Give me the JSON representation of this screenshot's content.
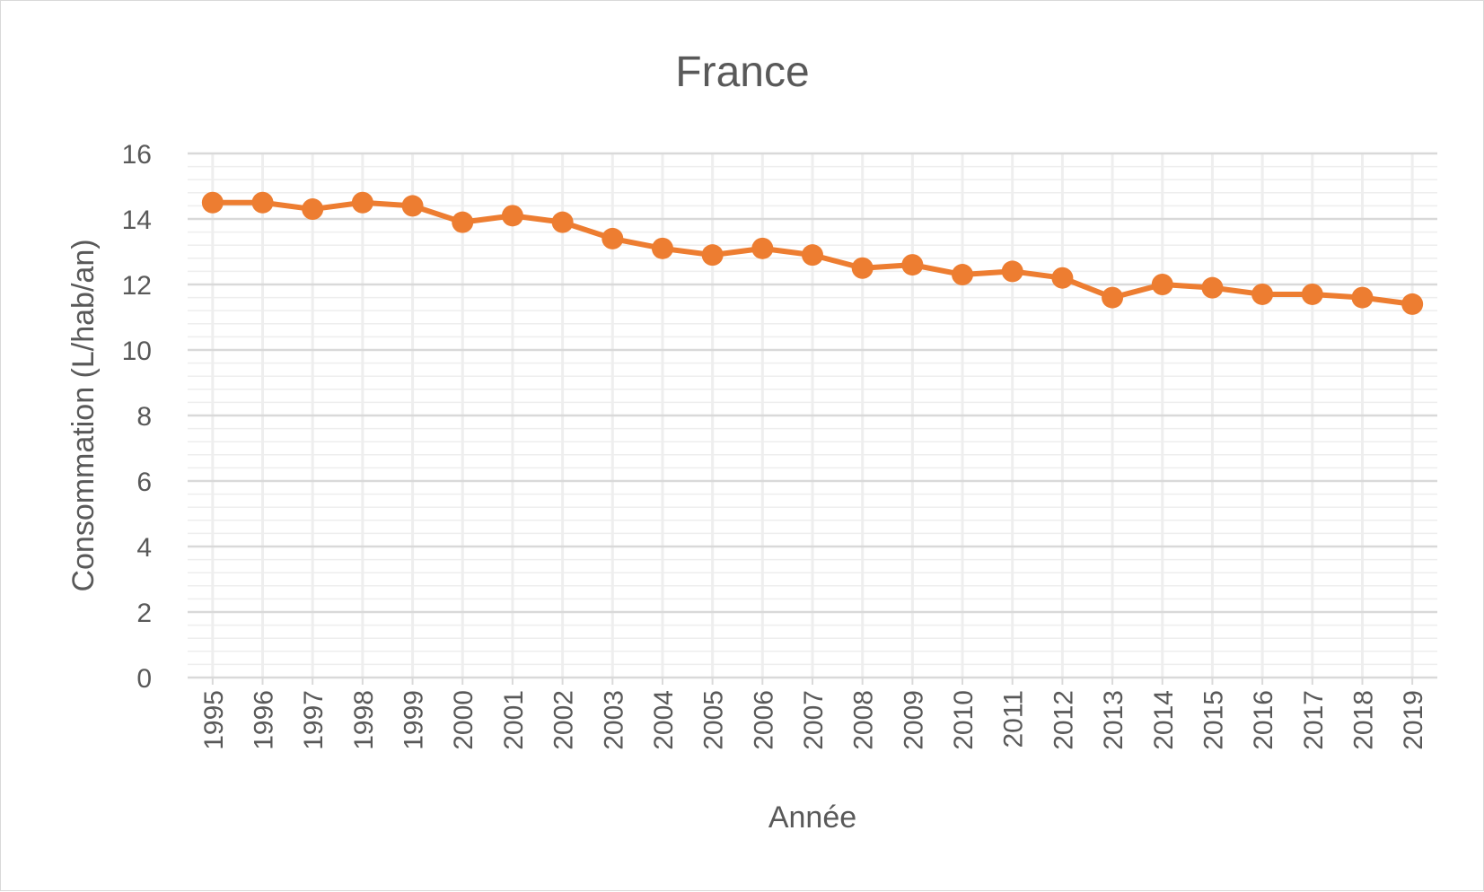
{
  "chart_data": {
    "type": "line",
    "title": "France",
    "xlabel": "Année",
    "ylabel": "Consommation (L/hab/an)",
    "x": [
      "1995",
      "1996",
      "1997",
      "1998",
      "1999",
      "2000",
      "2001",
      "2002",
      "2003",
      "2004",
      "2005",
      "2006",
      "2007",
      "2008",
      "2009",
      "2010",
      "2011",
      "2012",
      "2013",
      "2014",
      "2015",
      "2016",
      "2017",
      "2018",
      "2019"
    ],
    "series": [
      {
        "values": [
          14.5,
          14.5,
          14.3,
          14.5,
          14.4,
          13.9,
          14.1,
          13.9,
          13.4,
          13.1,
          12.9,
          13.1,
          12.9,
          12.5,
          12.6,
          12.3,
          12.4,
          12.2,
          11.6,
          12.0,
          11.9,
          11.7,
          11.7,
          11.6,
          11.4
        ],
        "color": "#ed7d31"
      }
    ],
    "ylim": [
      0,
      16
    ],
    "yticks": [
      0,
      2,
      4,
      6,
      8,
      10,
      12,
      14,
      16
    ],
    "grid": true,
    "legend": "none"
  }
}
